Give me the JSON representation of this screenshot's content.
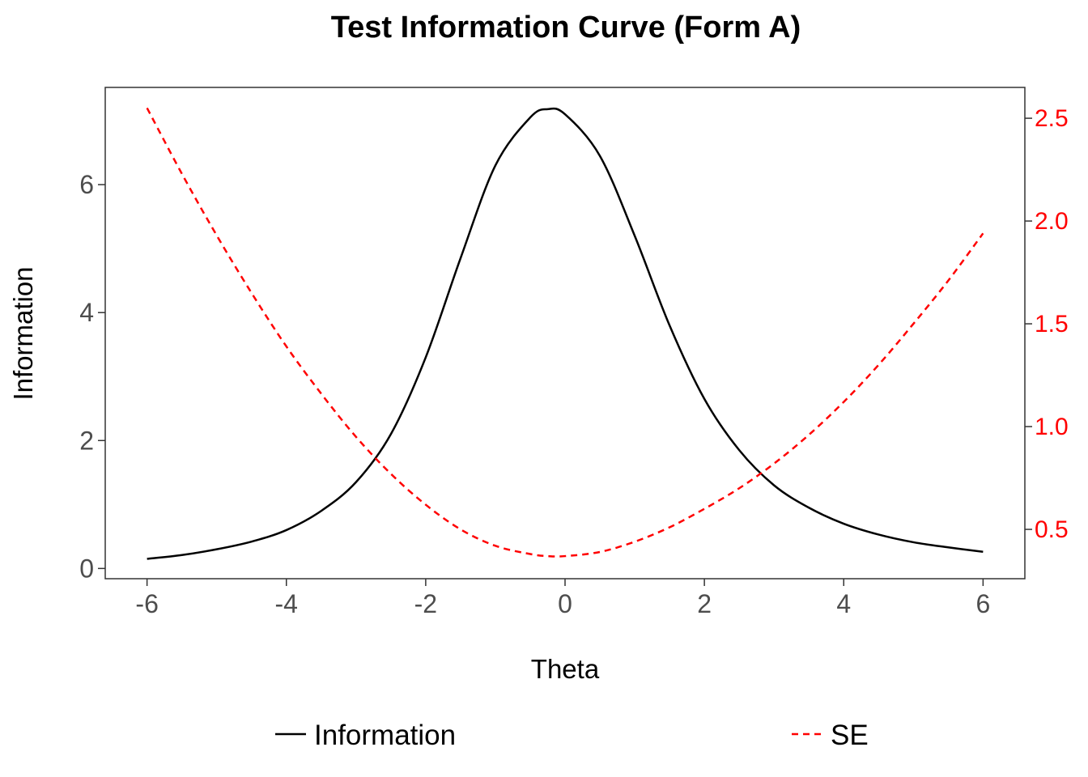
{
  "chart_data": {
    "type": "line",
    "title": "Test Information Curve (Form A)",
    "xlabel": "Theta",
    "ylabel": "Information",
    "y2label": "",
    "xlim": [
      -6.6,
      6.6
    ],
    "ylim": [
      -0.16,
      7.52
    ],
    "y2lim": [
      0.26,
      2.65
    ],
    "x_ticks": [
      -6,
      -4,
      -2,
      0,
      2,
      4,
      6
    ],
    "y_ticks": [
      0,
      2,
      4,
      6
    ],
    "y2_ticks": [
      0.5,
      1.0,
      1.5,
      2.0,
      2.5
    ],
    "x_tick_labels": [
      "-6",
      "-4",
      "-2",
      "0",
      "2",
      "4",
      "6"
    ],
    "y_tick_labels": [
      "0",
      "2",
      "4",
      "6"
    ],
    "y2_tick_labels": [
      "0.5",
      "1.0",
      "1.5",
      "2.0",
      "2.5"
    ],
    "grid": false,
    "legend_position": "bottom",
    "series": [
      {
        "name": "Information",
        "axis": "left",
        "color": "#000000",
        "line_style": "solid",
        "x": [
          -6,
          -5.5,
          -5,
          -4.5,
          -4,
          -3.5,
          -3,
          -2.5,
          -2,
          -1.5,
          -1,
          -0.5,
          -0.25,
          0,
          0.5,
          1,
          1.5,
          2,
          2.5,
          3,
          3.5,
          4,
          4.5,
          5,
          5.5,
          6
        ],
        "y": [
          0.15,
          0.21,
          0.3,
          0.42,
          0.6,
          0.9,
          1.35,
          2.1,
          3.3,
          4.85,
          6.3,
          7.05,
          7.18,
          7.1,
          6.45,
          5.2,
          3.8,
          2.65,
          1.85,
          1.3,
          0.95,
          0.7,
          0.53,
          0.41,
          0.33,
          0.26
        ]
      },
      {
        "name": "SE",
        "axis": "right",
        "color": "#ff0000",
        "line_style": "dashed",
        "x": [
          -6,
          -5.5,
          -5,
          -4.5,
          -4,
          -3.5,
          -3,
          -2.5,
          -2,
          -1.5,
          -1,
          -0.5,
          -0.25,
          0,
          0.5,
          1,
          1.5,
          2,
          2.5,
          3,
          3.5,
          4,
          4.5,
          5,
          5.5,
          6
        ],
        "y": [
          2.55,
          2.23,
          1.93,
          1.65,
          1.39,
          1.16,
          0.95,
          0.77,
          0.62,
          0.5,
          0.42,
          0.38,
          0.37,
          0.37,
          0.39,
          0.44,
          0.51,
          0.6,
          0.7,
          0.82,
          0.96,
          1.12,
          1.3,
          1.5,
          1.71,
          1.94
        ]
      }
    ]
  }
}
